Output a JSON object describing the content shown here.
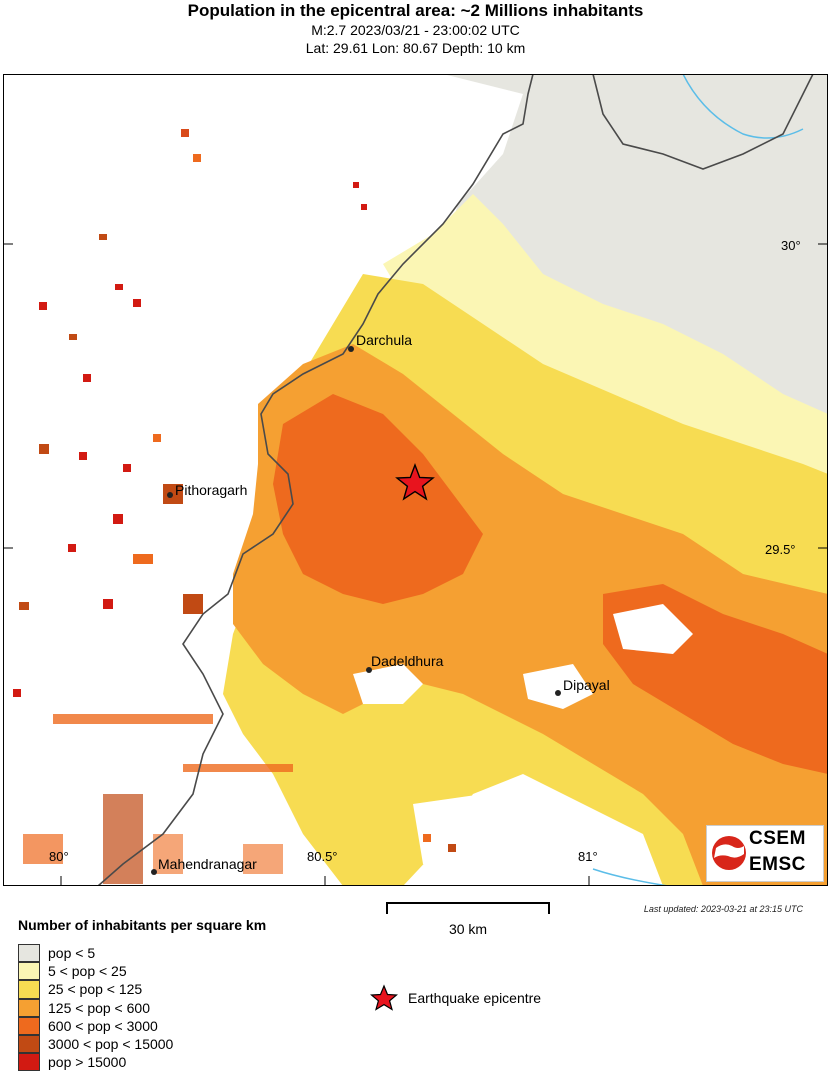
{
  "header": {
    "title": "Population in the epicentral area: ~2 Millions inhabitants",
    "event_line": "M:2.7 2023/03/21 - 23:00:02 UTC",
    "location_line": "Lat: 29.61 Lon: 80.67 Depth: 10 km"
  },
  "map": {
    "cities": [
      "Darchula",
      "Pithoragarh",
      "Dadeldhura",
      "Dipayal",
      "Mahendranagar"
    ],
    "lat_labels": [
      "30°",
      "29.5°"
    ],
    "lon_labels": [
      "80°",
      "80.5°",
      "81°"
    ]
  },
  "logo": {
    "line1": "CSEM",
    "line2": "EMSC"
  },
  "last_updated": "Last updated: 2023-03-21 at 23:15 UTC",
  "scale_bar": {
    "label": "30 km"
  },
  "legend": {
    "title": "Number of inhabitants per square km",
    "items": [
      {
        "label": "pop < 5",
        "color": "#e6e6e0"
      },
      {
        "label": "5 < pop < 25",
        "color": "#fbf6b4"
      },
      {
        "label": "25 < pop < 125",
        "color": "#f7dc52"
      },
      {
        "label": "125 < pop < 600",
        "color": "#f5a032"
      },
      {
        "label": "600 < pop < 3000",
        "color": "#ee6a1e"
      },
      {
        "label": "3000 < pop < 15000",
        "color": "#c14a14"
      },
      {
        "label": "pop > 15000",
        "color": "#d21a12"
      }
    ],
    "epicentre_label": "Earthquake epicentre",
    "epicentre_color": "#e8141e"
  }
}
